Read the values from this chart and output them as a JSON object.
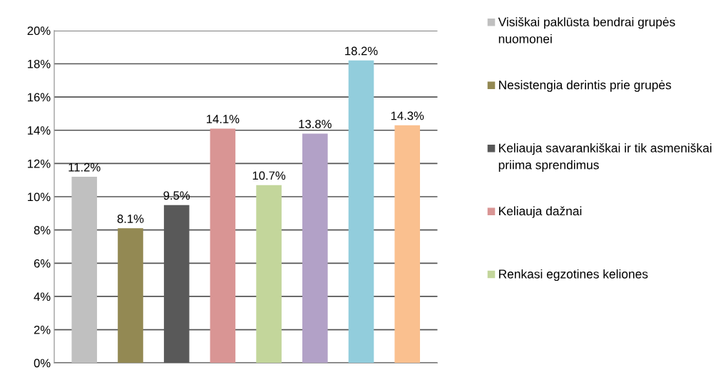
{
  "chart_data": {
    "type": "bar",
    "categories": [
      null
    ],
    "series": [
      {
        "name": "Visiškai paklūsta bendrai grupės nuomonei",
        "color": "#c0c0c0",
        "values": [
          11.2
        ],
        "value_labels": [
          "11.2%"
        ]
      },
      {
        "name": "Nesistengia derintis prie grupės",
        "color": "#938953",
        "values": [
          8.1
        ],
        "value_labels": [
          "8.1%"
        ]
      },
      {
        "name": "Keliauja savarankiškai ir tik asmeniškai priima sprendimus",
        "color": "#595959",
        "values": [
          9.5
        ],
        "value_labels": [
          "9.5%"
        ]
      },
      {
        "name": "Keliauja dažnai",
        "color": "#d99594",
        "values": [
          14.1
        ],
        "value_labels": [
          "14.1%"
        ]
      },
      {
        "name": "Renkasi egzotines keliones",
        "color": "#c3d69b",
        "values": [
          10.7
        ],
        "value_labels": [
          "10.7%"
        ]
      },
      {
        "color": "#b2a1c7",
        "values": [
          13.8
        ],
        "value_labels": [
          "13.8%"
        ]
      },
      {
        "color": "#92cddc",
        "values": [
          18.2
        ],
        "value_labels": [
          "18.2%"
        ]
      },
      {
        "color": "#fac08f",
        "values": [
          14.3
        ],
        "value_labels": [
          "14.3%"
        ]
      }
    ],
    "ylim": [
      0,
      20
    ],
    "yticks": [
      {
        "value": 0,
        "label": "0%"
      },
      {
        "value": 2,
        "label": "2%"
      },
      {
        "value": 4,
        "label": "4%"
      },
      {
        "value": 6,
        "label": "6%"
      },
      {
        "value": 8,
        "label": "8%"
      },
      {
        "value": 10,
        "label": "10%"
      },
      {
        "value": 12,
        "label": "12%"
      },
      {
        "value": 14,
        "label": "14%"
      },
      {
        "value": 16,
        "label": "16%"
      },
      {
        "value": 18,
        "label": "18%"
      },
      {
        "value": 20,
        "label": "20%"
      }
    ],
    "grid": "y",
    "legend": "right"
  }
}
